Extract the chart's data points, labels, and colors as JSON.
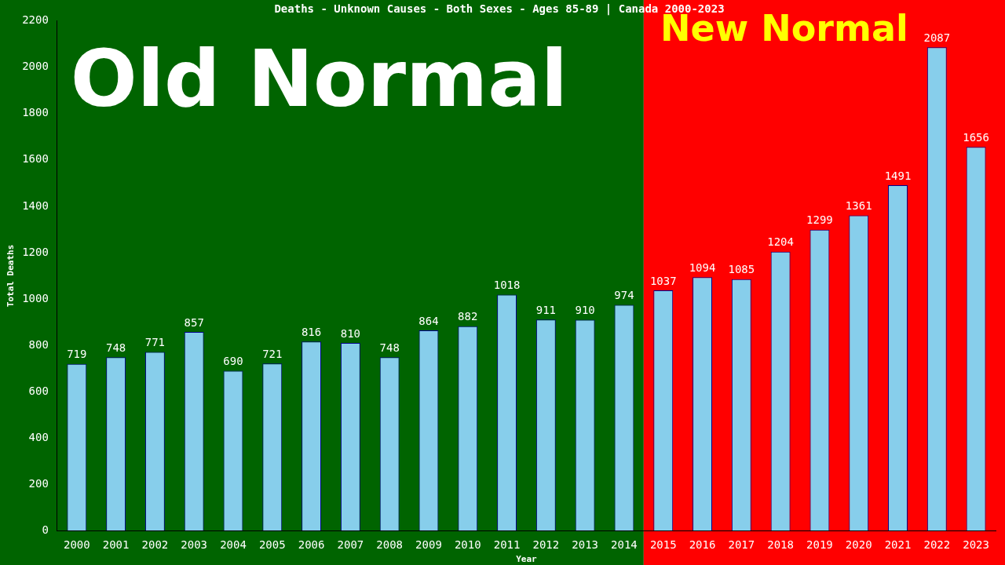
{
  "chart_data": {
    "type": "bar",
    "title": "Deaths - Unknown Causes - Both Sexes - Ages 85-89 | Canada 2000-2023",
    "xlabel": "Year",
    "ylabel": "Total Deaths",
    "categories": [
      "2000",
      "2001",
      "2002",
      "2003",
      "2004",
      "2005",
      "2006",
      "2007",
      "2008",
      "2009",
      "2010",
      "2011",
      "2012",
      "2013",
      "2014",
      "2015",
      "2016",
      "2017",
      "2018",
      "2019",
      "2020",
      "2021",
      "2022",
      "2023"
    ],
    "values": [
      719,
      748,
      771,
      857,
      690,
      721,
      816,
      810,
      748,
      864,
      882,
      1018,
      911,
      910,
      974,
      1037,
      1094,
      1085,
      1204,
      1299,
      1361,
      1491,
      2087,
      1656
    ],
    "color": "#87ceeb",
    "ylim": [
      0,
      2200
    ],
    "yticks": [
      0,
      200,
      400,
      600,
      800,
      1000,
      1200,
      1400,
      1600,
      1800,
      2000,
      2200
    ],
    "grid": false,
    "legend": false,
    "data_labels": true,
    "bands": [
      {
        "axis": "x",
        "from": "2000",
        "to": "2014",
        "label": "Old Normal",
        "color": "#006400"
      },
      {
        "axis": "x",
        "from": "2015",
        "to": "2023",
        "label": "New Normal",
        "color": "#ff0000"
      }
    ]
  }
}
